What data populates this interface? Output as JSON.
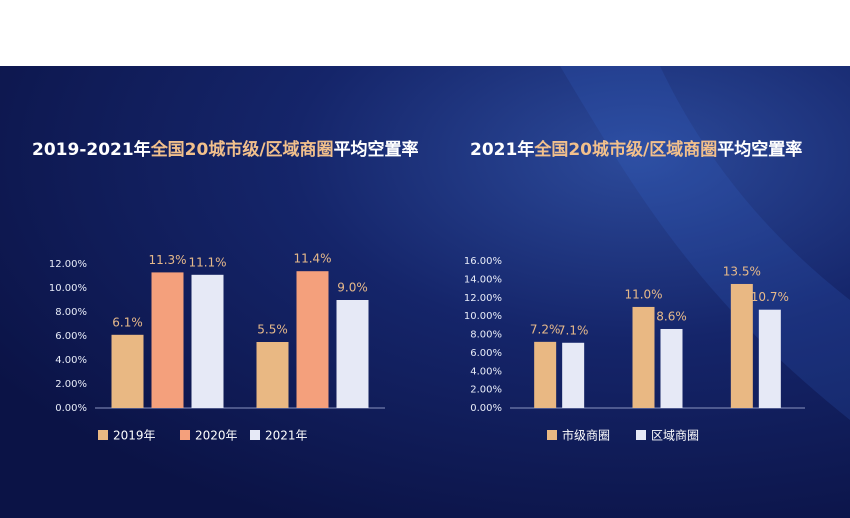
{
  "chart_data": [
    {
      "type": "bar",
      "title": [
        "2019-2021年",
        "全国20城市级/区域商圈",
        "平均空置率"
      ],
      "categories": [
        null,
        null
      ],
      "series": [
        {
          "name": "2019年",
          "color": "#e9b883",
          "values": [
            6.1,
            5.5
          ],
          "value_labels": [
            "6.1%",
            "5.5%"
          ]
        },
        {
          "name": "2020年",
          "color": "#f4a07c",
          "values": [
            11.3,
            11.4
          ],
          "value_labels": [
            "11.3%",
            "11.4%"
          ]
        },
        {
          "name": "2021年",
          "color": "#e6e9f6",
          "values": [
            11.1,
            9.0
          ],
          "value_labels": [
            "11.1%",
            "9.0%"
          ]
        }
      ],
      "ylim": [
        0,
        12
      ],
      "yticks": [
        {
          "value": 0,
          "label": "0.00%"
        },
        {
          "value": 2,
          "label": "2.00%"
        },
        {
          "value": 4,
          "label": "4.00%"
        },
        {
          "value": 6,
          "label": "6.00%"
        },
        {
          "value": 8,
          "label": "8.00%"
        },
        {
          "value": 10,
          "label": "10.00%"
        },
        {
          "value": 12,
          "label": "12.00%"
        }
      ]
    },
    {
      "type": "bar",
      "title": [
        "2021年",
        "全国20城市级/区域商圈",
        "平均空置率"
      ],
      "categories": [
        null,
        null,
        null
      ],
      "series": [
        {
          "name": "市级商圈",
          "color": "#e9b883",
          "values": [
            7.2,
            11.0,
            13.5
          ],
          "value_labels": [
            "7.2%",
            "11.0%",
            "13.5%"
          ]
        },
        {
          "name": "区域商圈",
          "color": "#e6e9f6",
          "values": [
            7.1,
            8.6,
            10.7
          ],
          "value_labels": [
            "7.1%",
            "8.6%",
            "10.7%"
          ]
        }
      ],
      "ylim": [
        0,
        16
      ],
      "yticks": [
        {
          "value": 0,
          "label": "0.00%"
        },
        {
          "value": 2,
          "label": "2.00%"
        },
        {
          "value": 4,
          "label": "4.00%"
        },
        {
          "value": 6,
          "label": "6.00%"
        },
        {
          "value": 8,
          "label": "8.00%"
        },
        {
          "value": 10,
          "label": "10.00%"
        },
        {
          "value": 12,
          "label": "12.00%"
        },
        {
          "value": 14,
          "label": "14.00%"
        },
        {
          "value": 16,
          "label": "16.00%"
        }
      ]
    }
  ]
}
